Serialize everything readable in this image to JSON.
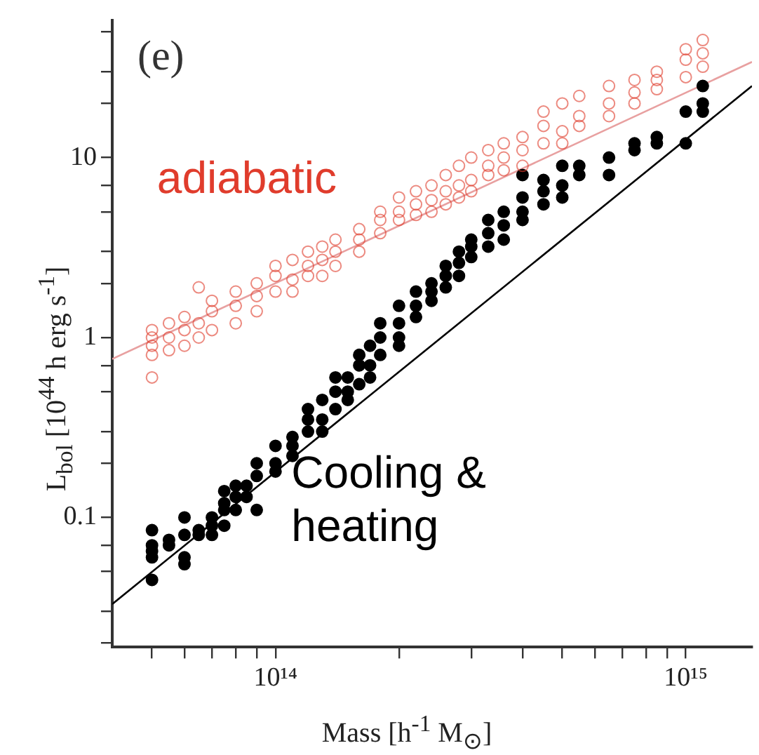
{
  "chart_data": {
    "type": "scatter",
    "xlabel": "Mass [h$^{-1}$ M$_{⊙}$]",
    "ylabel": "L$_{bol}$ [10$^{44}$ h erg s$^{-1}$]",
    "log": "xy",
    "grid": false,
    "legend": false,
    "xlim": [
      40000000000000.0,
      1450000000000000.0
    ],
    "ylim": [
      0.019,
      58
    ],
    "xticks": [
      {
        "value": 50000000000000.0,
        "label": null
      },
      {
        "value": 60000000000000.0,
        "label": null
      },
      {
        "value": 70000000000000.0,
        "label": null
      },
      {
        "value": 80000000000000.0,
        "label": null
      },
      {
        "value": 90000000000000.0,
        "label": null
      },
      {
        "value": 100000000000000.0,
        "label": "10¹⁴"
      },
      {
        "value": 200000000000000.0,
        "label": null
      },
      {
        "value": 300000000000000.0,
        "label": null
      },
      {
        "value": 400000000000000.0,
        "label": null
      },
      {
        "value": 500000000000000.0,
        "label": null
      },
      {
        "value": 600000000000000.0,
        "label": null
      },
      {
        "value": 700000000000000.0,
        "label": null
      },
      {
        "value": 800000000000000.0,
        "label": null
      },
      {
        "value": 900000000000000.0,
        "label": null
      },
      {
        "value": 1000000000000000.0,
        "label": "10¹⁵"
      }
    ],
    "yticks": [
      {
        "value": 0.02,
        "label": null
      },
      {
        "value": 0.03,
        "label": null
      },
      {
        "value": 0.05,
        "label": null
      },
      {
        "value": 0.07,
        "label": null
      },
      0.1,
      {
        "value": 0.2,
        "label": null
      },
      {
        "value": 0.3,
        "label": null
      },
      {
        "value": 0.5,
        "label": null
      },
      {
        "value": 0.7,
        "label": null
      },
      1,
      {
        "value": 2,
        "label": null
      },
      {
        "value": 3,
        "label": null
      },
      {
        "value": 5,
        "label": null
      },
      {
        "value": 7,
        "label": null
      },
      10,
      {
        "value": 20,
        "label": null
      },
      {
        "value": 30,
        "label": null
      },
      {
        "value": 50,
        "label": null
      }
    ],
    "annotations": [
      "(e)"
    ],
    "series": [
      {
        "name": "adiabatic",
        "color": "#e03c2c",
        "marker": "circle",
        "x": [
          50000000000000.0,
          50000000000000.0,
          50000000000000.0,
          50000000000000.0,
          50000000000000.0,
          55000000000000.0,
          55000000000000.0,
          55000000000000.0,
          60000000000000.0,
          60000000000000.0,
          60000000000000.0,
          65000000000000.0,
          65000000000000.0,
          65000000000000.0,
          70000000000000.0,
          70000000000000.0,
          70000000000000.0,
          80000000000000.0,
          80000000000000.0,
          80000000000000.0,
          90000000000000.0,
          90000000000000.0,
          90000000000000.0,
          100000000000000.0,
          100000000000000.0,
          100000000000000.0,
          110000000000000.0,
          110000000000000.0,
          110000000000000.0,
          120000000000000.0,
          120000000000000.0,
          120000000000000.0,
          130000000000000.0,
          130000000000000.0,
          130000000000000.0,
          140000000000000.0,
          140000000000000.0,
          140000000000000.0,
          160000000000000.0,
          160000000000000.0,
          160000000000000.0,
          180000000000000.0,
          180000000000000.0,
          180000000000000.0,
          200000000000000.0,
          200000000000000.0,
          200000000000000.0,
          220000000000000.0,
          220000000000000.0,
          220000000000000.0,
          240000000000000.0,
          240000000000000.0,
          240000000000000.0,
          260000000000000.0,
          260000000000000.0,
          260000000000000.0,
          280000000000000.0,
          280000000000000.0,
          280000000000000.0,
          300000000000000.0,
          300000000000000.0,
          300000000000000.0,
          330000000000000.0,
          330000000000000.0,
          330000000000000.0,
          360000000000000.0,
          360000000000000.0,
          360000000000000.0,
          400000000000000.0,
          400000000000000.0,
          400000000000000.0,
          450000000000000.0,
          450000000000000.0,
          450000000000000.0,
          500000000000000.0,
          500000000000000.0,
          500000000000000.0,
          550000000000000.0,
          550000000000000.0,
          550000000000000.0,
          650000000000000.0,
          650000000000000.0,
          650000000000000.0,
          750000000000000.0,
          750000000000000.0,
          750000000000000.0,
          850000000000000.0,
          850000000000000.0,
          850000000000000.0,
          1000000000000000.0,
          1000000000000000.0,
          1000000000000000.0,
          1100000000000000.0,
          1100000000000000.0,
          1100000000000000.0
        ],
        "values": [
          1.1,
          0.9,
          0.8,
          1.0,
          0.6,
          1.2,
          0.85,
          1.0,
          1.3,
          0.9,
          1.1,
          1.9,
          1.2,
          1.0,
          1.4,
          1.1,
          1.6,
          1.5,
          1.8,
          1.2,
          2,
          1.7,
          1.4,
          2.2,
          1.8,
          2.5,
          2.7,
          2.1,
          1.8,
          2.5,
          3,
          2.2,
          3.2,
          2.7,
          2.2,
          3.5,
          3,
          2.5,
          4,
          3.5,
          3,
          4.5,
          5,
          3.8,
          5,
          4.5,
          6,
          5.5,
          4.8,
          6.5,
          5.8,
          7,
          5,
          6.5,
          5.5,
          8,
          9,
          7,
          6,
          7.5,
          10,
          6.5,
          9,
          11,
          8,
          12,
          10,
          8.5,
          13,
          11,
          9,
          15,
          12,
          18,
          14,
          20,
          12,
          22,
          17,
          15,
          20,
          25,
          17,
          23,
          27,
          20,
          27,
          30,
          24,
          35,
          28,
          40,
          45,
          32,
          38
        ]
      },
      {
        "name": "Cooling & heating",
        "color": "#000000",
        "marker": "circle",
        "x": [
          50000000000000.0,
          50000000000000.0,
          50000000000000.0,
          50000000000000.0,
          50000000000000.0,
          55000000000000.0,
          55000000000000.0,
          60000000000000.0,
          60000000000000.0,
          60000000000000.0,
          60000000000000.0,
          65000000000000.0,
          65000000000000.0,
          70000000000000.0,
          70000000000000.0,
          70000000000000.0,
          75000000000000.0,
          75000000000000.0,
          75000000000000.0,
          75000000000000.0,
          80000000000000.0,
          80000000000000.0,
          80000000000000.0,
          85000000000000.0,
          85000000000000.0,
          90000000000000.0,
          90000000000000.0,
          90000000000000.0,
          100000000000000.0,
          100000000000000.0,
          100000000000000.0,
          110000000000000.0,
          110000000000000.0,
          110000000000000.0,
          120000000000000.0,
          120000000000000.0,
          120000000000000.0,
          130000000000000.0,
          130000000000000.0,
          130000000000000.0,
          140000000000000.0,
          140000000000000.0,
          140000000000000.0,
          150000000000000.0,
          150000000000000.0,
          150000000000000.0,
          160000000000000.0,
          160000000000000.0,
          160000000000000.0,
          170000000000000.0,
          170000000000000.0,
          170000000000000.0,
          180000000000000.0,
          180000000000000.0,
          180000000000000.0,
          200000000000000.0,
          200000000000000.0,
          200000000000000.0,
          200000000000000.0,
          220000000000000.0,
          220000000000000.0,
          220000000000000.0,
          240000000000000.0,
          240000000000000.0,
          240000000000000.0,
          260000000000000.0,
          260000000000000.0,
          260000000000000.0,
          280000000000000.0,
          280000000000000.0,
          280000000000000.0,
          300000000000000.0,
          300000000000000.0,
          300000000000000.0,
          330000000000000.0,
          330000000000000.0,
          330000000000000.0,
          360000000000000.0,
          360000000000000.0,
          360000000000000.0,
          400000000000000.0,
          400000000000000.0,
          400000000000000.0,
          400000000000000.0,
          450000000000000.0,
          450000000000000.0,
          450000000000000.0,
          500000000000000.0,
          500000000000000.0,
          500000000000000.0,
          550000000000000.0,
          550000000000000.0,
          650000000000000.0,
          650000000000000.0,
          750000000000000.0,
          750000000000000.0,
          850000000000000.0,
          850000000000000.0,
          1000000000000000.0,
          1000000000000000.0,
          1100000000000000.0,
          1100000000000000.0,
          1100000000000000.0
        ],
        "values": [
          0.085,
          0.07,
          0.065,
          0.06,
          0.045,
          0.075,
          0.07,
          0.1,
          0.08,
          0.06,
          0.055,
          0.085,
          0.08,
          0.1,
          0.09,
          0.08,
          0.14,
          0.12,
          0.11,
          0.09,
          0.15,
          0.13,
          0.11,
          0.15,
          0.13,
          0.2,
          0.17,
          0.11,
          0.2,
          0.18,
          0.25,
          0.28,
          0.22,
          0.25,
          0.35,
          0.3,
          0.4,
          0.45,
          0.35,
          0.3,
          0.5,
          0.4,
          0.6,
          0.6,
          0.5,
          0.45,
          0.7,
          0.55,
          0.8,
          0.9,
          0.7,
          0.6,
          0.8,
          1.0,
          1.2,
          1.2,
          1.0,
          1.5,
          0.9,
          1.5,
          1.3,
          1.8,
          2,
          1.6,
          1.8,
          2.2,
          2.5,
          1.9,
          3,
          2.6,
          2.2,
          3.5,
          2.8,
          3.2,
          4.5,
          3.8,
          3.2,
          5,
          4.2,
          3.5,
          6,
          5,
          8,
          4.5,
          6.5,
          7.5,
          5.5,
          9,
          7,
          6,
          9,
          8,
          10,
          8,
          11,
          12,
          12,
          13,
          18,
          12,
          25,
          20,
          18
        ]
      },
      {
        "type": "line",
        "color": "#e8a0a0",
        "marker": "none",
        "x": [
          40000000000000.0,
          1450000000000000.0
        ],
        "values": [
          0.76,
          34
        ]
      },
      {
        "type": "line",
        "color": "#000000",
        "marker": "none",
        "x": [
          40000000000000.0,
          1450000000000000.0
        ],
        "values": [
          0.033,
          25
        ]
      }
    ]
  }
}
